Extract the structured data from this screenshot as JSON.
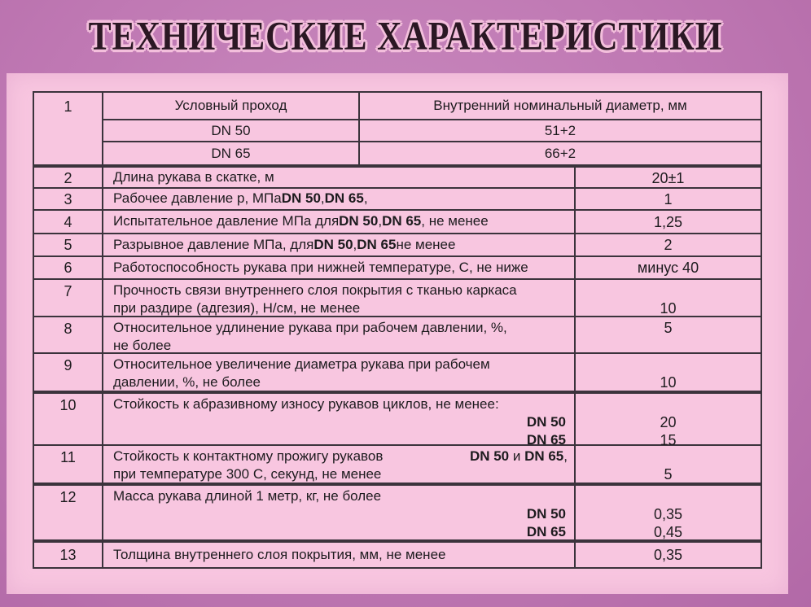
{
  "title": "ТЕХНИЧЕСКИЕ ХАРАКТЕРИСТИКИ",
  "colors": {
    "background": "#bf78b3",
    "panel": "#f8c6e0",
    "table_line": "#3b333c",
    "text": "#1d1b1e",
    "title_fill": "#2b1824",
    "title_outline": "#f3bfdc"
  },
  "table": {
    "row1": {
      "num": "1",
      "header": {
        "left": "Условный проход",
        "right": "Внутренний номинальный диаметр, мм"
      },
      "subrows": [
        {
          "left": "DN 50",
          "right": "51+2"
        },
        {
          "left": "DN 65",
          "right": "66+2"
        }
      ]
    },
    "rows": [
      {
        "num": "2",
        "h": 26,
        "desc_lines": [
          {
            "align": "left",
            "segs": [
              {
                "t": "Длина рукава в скатке, м"
              }
            ]
          }
        ],
        "value_lines": [
          "20±1"
        ]
      },
      {
        "num": "3",
        "h": 27,
        "desc_lines": [
          {
            "align": "left",
            "segs": [
              {
                "t": "Рабочее давление р, МПа "
              },
              {
                "t": "DN 50",
                "b": true
              },
              {
                "t": ", "
              },
              {
                "t": "DN 65",
                "b": true
              },
              {
                "t": ","
              }
            ]
          }
        ],
        "value_lines": [
          "1"
        ]
      },
      {
        "num": "4",
        "h": 29,
        "desc_lines": [
          {
            "align": "left",
            "segs": [
              {
                "t": "Испытательное давление МПа для "
              },
              {
                "t": "DN 50",
                "b": true
              },
              {
                "t": ", "
              },
              {
                "t": "DN 65",
                "b": true
              },
              {
                "t": ", не менее"
              }
            ]
          }
        ],
        "value_lines": [
          "1,25"
        ]
      },
      {
        "num": "5",
        "h": 28,
        "desc_lines": [
          {
            "align": "left",
            "segs": [
              {
                "t": "Разрывное давление МПа, для "
              },
              {
                "t": "DN 50",
                "b": true
              },
              {
                "t": ", "
              },
              {
                "t": "DN 65",
                "b": true
              },
              {
                "t": " не менее"
              }
            ]
          }
        ],
        "value_lines": [
          "2"
        ]
      },
      {
        "num": "6",
        "h": 28,
        "desc_lines": [
          {
            "align": "left",
            "segs": [
              {
                "t": "Работоспособность рукава при нижней температуре, С, не ниже"
              }
            ]
          }
        ],
        "value_lines": [
          "минус 40"
        ]
      },
      {
        "num": "7",
        "h": 46,
        "desc_lines": [
          {
            "align": "left",
            "segs": [
              {
                "t": "Прочность связи внутреннего слоя покрытия с тканью каркаса"
              }
            ]
          },
          {
            "align": "left",
            "segs": [
              {
                "t": "при раздире (адгезия), Н/см, не менее"
              }
            ]
          }
        ],
        "value_lines": [
          "",
          "10"
        ]
      },
      {
        "num": "8",
        "h": 45,
        "desc_lines": [
          {
            "align": "left",
            "segs": [
              {
                "t": "Относительное удлинение рукава при рабочем давлении, %,"
              }
            ]
          },
          {
            "align": "left",
            "segs": [
              {
                "t": "не более"
              }
            ]
          }
        ],
        "value_lines": [
          "5",
          ""
        ]
      },
      {
        "num": "9",
        "h": 47,
        "desc_lines": [
          {
            "align": "left",
            "segs": [
              {
                "t": "Относительное увеличение диаметра рукава при рабочем"
              }
            ]
          },
          {
            "align": "left",
            "segs": [
              {
                "t": "давлении, %, не более"
              }
            ]
          }
        ],
        "value_lines": [
          "",
          "10"
        ]
      },
      {
        "num": "10",
        "h": 66,
        "thick_top": true,
        "desc_lines": [
          {
            "align": "left",
            "segs": [
              {
                "t": "Стойкость к абразивному износу рукавов циклов, не менее:"
              }
            ]
          },
          {
            "align": "right",
            "segs": [
              {
                "t": "DN 50",
                "b": true
              }
            ]
          },
          {
            "align": "right",
            "segs": [
              {
                "t": "DN 65",
                "b": true
              }
            ]
          }
        ],
        "value_lines": [
          "",
          "20",
          "15"
        ]
      },
      {
        "num": "11",
        "h": 47,
        "desc_lines": [
          {
            "align": "split",
            "segs": [
              {
                "t": "Стойкость к контактному прожигу рукавов"
              }
            ],
            "right_segs": [
              {
                "t": "DN 50",
                "b": true
              },
              {
                "t": " и "
              },
              {
                "t": "DN 65",
                "b": true
              },
              {
                "t": ","
              }
            ]
          },
          {
            "align": "left",
            "segs": [
              {
                "t": "при температуре 300 С, секунд, не менее"
              }
            ]
          }
        ],
        "value_lines": [
          "",
          "5"
        ]
      },
      {
        "num": "12",
        "h": 70,
        "thick_top": true,
        "desc_lines": [
          {
            "align": "left",
            "segs": [
              {
                "t": "Масса рукава длиной 1 метр, кг, не более"
              }
            ]
          },
          {
            "align": "right",
            "segs": [
              {
                "t": "DN 50",
                "b": true
              }
            ]
          },
          {
            "align": "right",
            "segs": [
              {
                "t": "DN 65",
                "b": true
              }
            ]
          }
        ],
        "value_lines": [
          "",
          "0,35",
          "0,45"
        ]
      },
      {
        "num": "13",
        "h": 32,
        "thick_top": true,
        "desc_lines": [
          {
            "align": "left",
            "segs": [
              {
                "t": "Толщина внутреннего слоя покрытия, мм, не менее"
              }
            ]
          }
        ],
        "value_lines": [
          "0,35"
        ]
      }
    ]
  }
}
